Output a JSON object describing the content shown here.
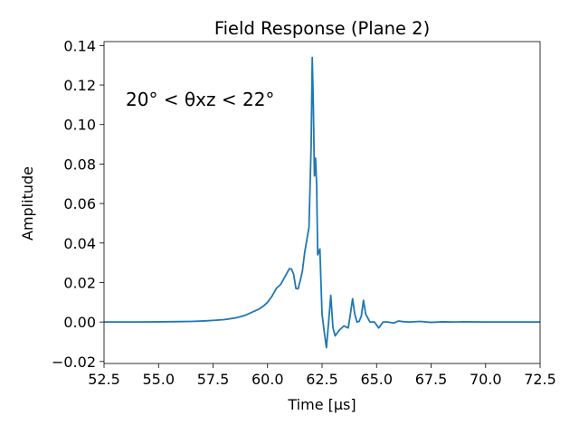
{
  "chart_data": {
    "type": "line",
    "title": "Field Response (Plane 2)",
    "xlabel": "Time [μs]",
    "ylabel": "Amplitude",
    "annotation": "20° < θxz < 22°",
    "xlim": [
      52.5,
      72.5
    ],
    "ylim": [
      -0.021,
      0.142
    ],
    "xticks": [
      52.5,
      55.0,
      57.5,
      60.0,
      62.5,
      65.0,
      67.5,
      70.0,
      72.5
    ],
    "xtick_labels": [
      "52.5",
      "55.0",
      "57.5",
      "60.0",
      "62.5",
      "65.0",
      "67.5",
      "70.0",
      "72.5"
    ],
    "yticks": [
      -0.02,
      0.0,
      0.02,
      0.04,
      0.06,
      0.08,
      0.1,
      0.12,
      0.14
    ],
    "ytick_labels": [
      "−0.02",
      "0.00",
      "0.02",
      "0.04",
      "0.06",
      "0.08",
      "0.10",
      "0.12",
      "0.14"
    ],
    "grid": false,
    "line_color": "#1f77b4",
    "series": [
      {
        "x": [
          52.5,
          53.0,
          54.0,
          55.0,
          56.0,
          56.5,
          57.0,
          57.5,
          58.0,
          58.5,
          58.8,
          59.0,
          59.3,
          59.6,
          59.8,
          60.0,
          60.2,
          60.4,
          60.6,
          60.8,
          61.0,
          61.1,
          61.2,
          61.3,
          61.4,
          61.5,
          61.6,
          61.7,
          61.9,
          62.0,
          62.05,
          62.1,
          62.15,
          62.2,
          62.25,
          62.3,
          62.4,
          62.45,
          62.5,
          62.6,
          62.7,
          62.8,
          62.9,
          63.0,
          63.1,
          63.3,
          63.5,
          63.7,
          63.8,
          63.9,
          64.0,
          64.1,
          64.2,
          64.3,
          64.4,
          64.5,
          64.7,
          64.9,
          65.1,
          65.2,
          65.3,
          65.5,
          65.8,
          66.0,
          66.2,
          66.5,
          67.0,
          67.5,
          68.0,
          68.5,
          69.0,
          70.0,
          71.0,
          72.5
        ],
        "y": [
          0.0,
          0.0,
          0.0,
          0.0001,
          0.0002,
          0.0003,
          0.0005,
          0.0008,
          0.0012,
          0.002,
          0.0028,
          0.0035,
          0.005,
          0.0065,
          0.008,
          0.01,
          0.013,
          0.017,
          0.019,
          0.023,
          0.027,
          0.0268,
          0.024,
          0.017,
          0.0168,
          0.021,
          0.026,
          0.035,
          0.048,
          0.09,
          0.134,
          0.11,
          0.074,
          0.083,
          0.07,
          0.034,
          0.037,
          0.02,
          0.004,
          -0.005,
          -0.013,
          0.0,
          0.0135,
          -0.003,
          -0.007,
          -0.004,
          -0.002,
          -0.003,
          0.004,
          0.0118,
          0.004,
          0.0,
          0.0003,
          0.003,
          0.011,
          0.004,
          0.0,
          0.0,
          -0.003,
          -0.0015,
          0.0,
          0.0,
          -0.0005,
          0.0005,
          0.0002,
          0.0,
          0.0003,
          -0.0002,
          0.0001,
          0.0,
          0.0001,
          0.0,
          0.0,
          0.0
        ]
      }
    ]
  }
}
